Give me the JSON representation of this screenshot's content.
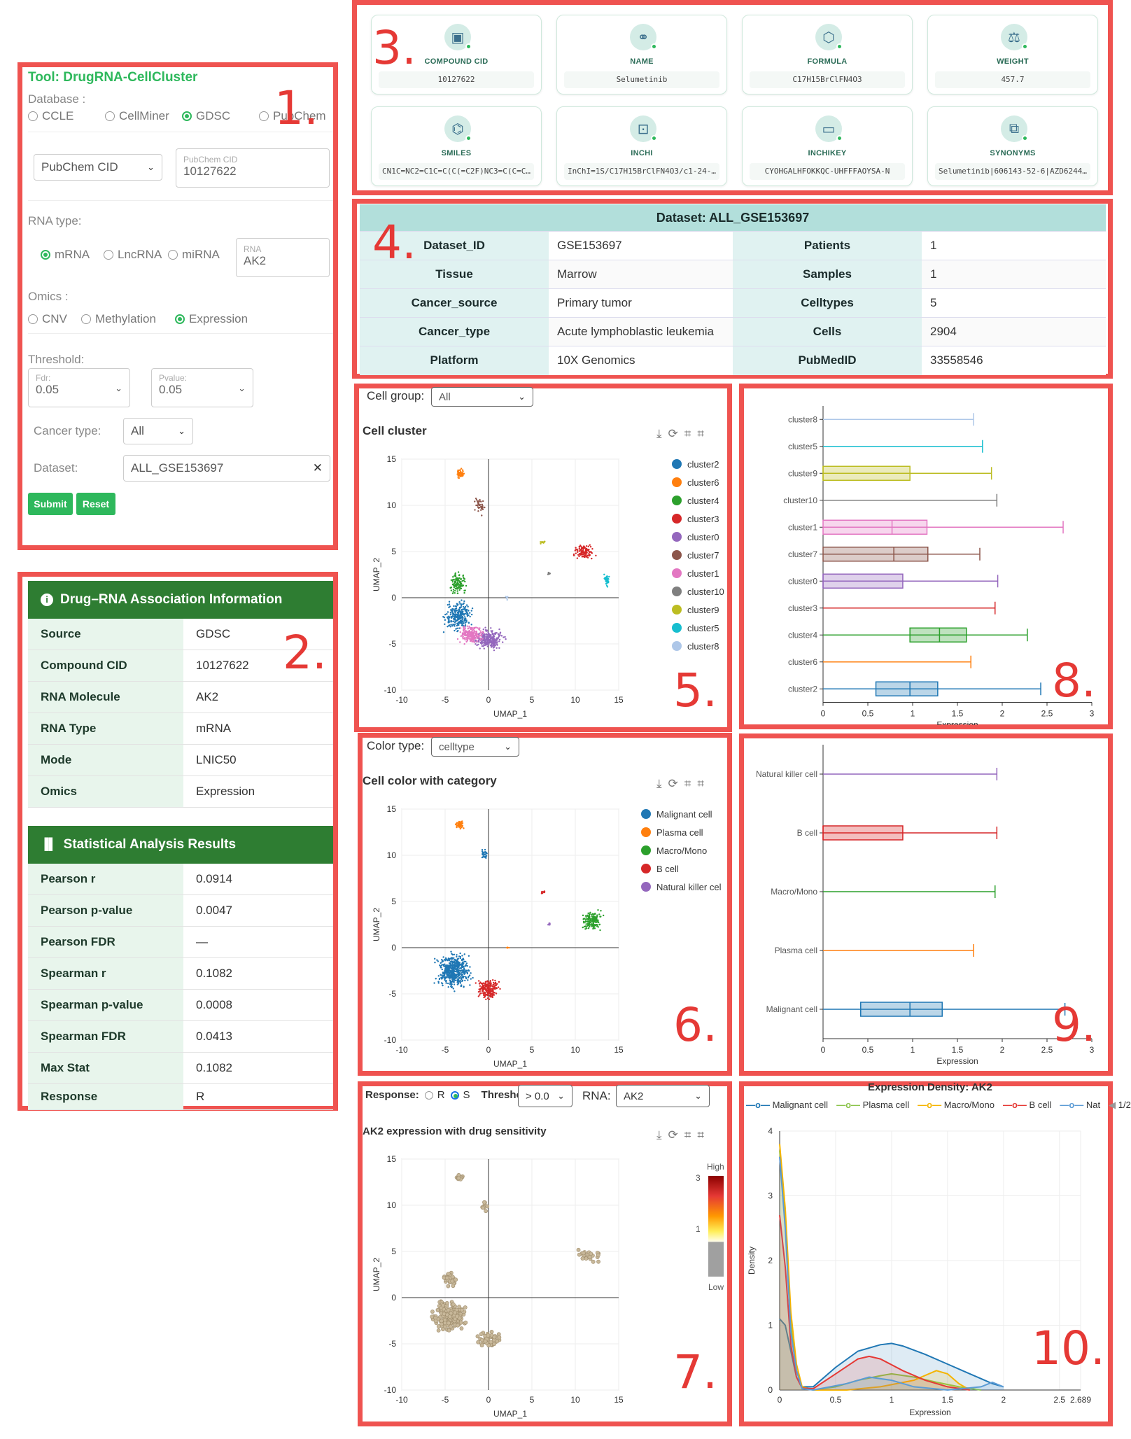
{
  "tool_panel": {
    "title": "Tool: DrugRNA-CellCluster",
    "database_label": "Database :",
    "databases": [
      "CCLE",
      "CellMiner",
      "GDSC",
      "PubChem"
    ],
    "database_selected": "GDSC",
    "id_type": "PubChem CID",
    "id_float_label": "PubChem CID",
    "id_value": "10127622",
    "rna_type_label": "RNA type:",
    "rna_types": [
      "mRNA",
      "LncRNA",
      "miRNA"
    ],
    "rna_selected": "mRNA",
    "rna_float_label": "RNA",
    "rna_value": "AK2",
    "omics_label": "Omics :",
    "omics": [
      "CNV",
      "Methylation",
      "Expression"
    ],
    "omics_selected": "Expression",
    "threshold_label": "Threshold:",
    "fdr_label": "Fdr:",
    "fdr_value": "0.05",
    "pvalue_label": "Pvalue:",
    "pvalue_value": "0.05",
    "cancer_type_label": "Cancer type:",
    "cancer_type_value": "All",
    "dataset_label": "Dataset:",
    "dataset_value": "ALL_GSE153697",
    "submit": "Submit",
    "reset": "Reset"
  },
  "association": {
    "title": "Drug–RNA Association Information",
    "rows": [
      {
        "k": "Source",
        "v": "GDSC"
      },
      {
        "k": "Compound CID",
        "v": "10127622"
      },
      {
        "k": "RNA Molecule",
        "v": "AK2"
      },
      {
        "k": "RNA Type",
        "v": "mRNA"
      },
      {
        "k": "Mode",
        "v": "LNIC50"
      },
      {
        "k": "Omics",
        "v": "Expression"
      }
    ]
  },
  "stats": {
    "title": "Statistical Analysis Results",
    "rows": [
      {
        "k": "Pearson r",
        "v": "0.0914"
      },
      {
        "k": "Pearson p-value",
        "v": "0.0047"
      },
      {
        "k": "Pearson FDR",
        "v": "—"
      },
      {
        "k": "Spearman r",
        "v": "0.1082"
      },
      {
        "k": "Spearman p-value",
        "v": "0.0008"
      },
      {
        "k": "Spearman FDR",
        "v": "0.0413"
      },
      {
        "k": "Max Stat",
        "v": "0.1082"
      },
      {
        "k": "Response",
        "v": "R"
      }
    ]
  },
  "compound_cards": [
    {
      "title": "COMPOUND CID",
      "value": "10127622",
      "icon": "pill-icon"
    },
    {
      "title": "NAME",
      "value": "Selumetinib",
      "icon": "capsule-icon"
    },
    {
      "title": "FORMULA",
      "value": "C17H15BrClFN4O3",
      "icon": "hexagon-icon"
    },
    {
      "title": "WEIGHT",
      "value": "457.7",
      "icon": "scale-icon"
    },
    {
      "title": "SMILES",
      "value": "CN1C=NC2=C1C=C(C(=C2F)NC3=C(C=C…",
      "icon": "molecule-icon"
    },
    {
      "title": "INCHI",
      "value": "InChI=1S/C17H15BrClFN4O3/c1-24-…",
      "icon": "scan-icon"
    },
    {
      "title": "INCHIKEY",
      "value": "CYOHGALHFOKKQC-UHFFFAOYSA-N",
      "icon": "terminal-icon"
    },
    {
      "title": "SYNONYMS",
      "value": "Selumetinib|606143-52-6|AZD6244…",
      "icon": "copy-icon"
    }
  ],
  "dataset": {
    "header": "Dataset: ALL_GSE153697",
    "rows": [
      [
        "Dataset_ID",
        "GSE153697",
        "Patients",
        "1"
      ],
      [
        "Tissue",
        "Marrow",
        "Samples",
        "1"
      ],
      [
        "Cancer_source",
        "Primary tumor",
        "Celltypes",
        "5"
      ],
      [
        "Cancer_type",
        "Acute lymphoblastic leukemia",
        "Cells",
        "2904"
      ],
      [
        "Platform",
        "10X Genomics",
        "PubMedID",
        "33558546"
      ]
    ]
  },
  "panel_numbers": [
    "1.",
    "2.",
    "3.",
    "4.",
    "5.",
    "6.",
    "7.",
    "8.",
    "9.",
    "10."
  ],
  "cluster_panel": {
    "control_label": "Cell group:",
    "control_value": "All",
    "title": "Cell cluster",
    "legend": [
      {
        "name": "cluster2",
        "color": "#1f77b4"
      },
      {
        "name": "cluster6",
        "color": "#ff7f0e"
      },
      {
        "name": "cluster4",
        "color": "#2ca02c"
      },
      {
        "name": "cluster3",
        "color": "#d62728"
      },
      {
        "name": "cluster0",
        "color": "#9467bd"
      },
      {
        "name": "cluster7",
        "color": "#8c564b"
      },
      {
        "name": "cluster1",
        "color": "#e377c2"
      },
      {
        "name": "cluster10",
        "color": "#7f7f7f"
      },
      {
        "name": "cluster9",
        "color": "#bcbd22"
      },
      {
        "name": "cluster5",
        "color": "#17becf"
      },
      {
        "name": "cluster8",
        "color": "#aec7e8"
      }
    ]
  },
  "category_panel": {
    "control_label": "Color type:",
    "control_value": "celltype",
    "title": "Cell color with category",
    "legend": [
      {
        "name": "Malignant cell",
        "color": "#1f77b4"
      },
      {
        "name": "Plasma cell",
        "color": "#ff7f0e"
      },
      {
        "name": "Macro/Mono",
        "color": "#2ca02c"
      },
      {
        "name": "B cell",
        "color": "#d62728"
      },
      {
        "name": "Natural killer cel",
        "color": "#9467bd"
      }
    ]
  },
  "sensitivity_panel": {
    "response_label": "Response:",
    "response_options": [
      "R",
      "S"
    ],
    "response_selected": "S",
    "threshold_label": "Threshold:",
    "threshold_value": "> 0.0",
    "rna_label": "RNA:",
    "rna_value": "AK2",
    "title": "AK2 expression with drug sensitivity",
    "scale_high": "High",
    "scale_low": "Low",
    "scale_ticks": [
      "3",
      "1"
    ]
  },
  "density_panel": {
    "title": "Expression Density: AK2",
    "legend": [
      {
        "name": "Malignant cell",
        "color": "#1f77b4"
      },
      {
        "name": "Plasma cell",
        "color": "#8bc34a"
      },
      {
        "name": "Macro/Mono",
        "color": "#f5b400"
      },
      {
        "name": "B cell",
        "color": "#e53935"
      },
      {
        "name": "Nat",
        "color": "#5b9bd5"
      }
    ],
    "page": "1/2"
  },
  "toolbar_icons": [
    "download-icon",
    "refresh-icon",
    "crop-icon",
    "crop-icon"
  ],
  "chart_data": [
    {
      "type": "scatter",
      "name": "cell cluster umap",
      "title": "Cell cluster",
      "xlabel": "UMAP_1",
      "ylabel": "UMAP_2",
      "xlim": [
        -10,
        15
      ],
      "ylim": [
        -10,
        15
      ],
      "xticks": [
        "-10",
        "-5",
        "0",
        "5",
        "10",
        "15"
      ],
      "yticks": [
        "-10",
        "-5",
        "0",
        "5",
        "10",
        "15"
      ]
    },
    {
      "type": "scatter",
      "name": "category umap",
      "title": "Cell color with category",
      "xlabel": "UMAP_1",
      "ylabel": "UMAP_2",
      "xlim": [
        -10,
        15
      ],
      "ylim": [
        -10,
        15
      ],
      "xticks": [
        "-10",
        "-5",
        "0",
        "5",
        "10",
        "15"
      ],
      "yticks": [
        "-10",
        "-5",
        "0",
        "5",
        "10",
        "15"
      ]
    },
    {
      "type": "scatter",
      "name": "sensitivity umap",
      "title": "AK2 expression with drug sensitivity",
      "xlabel": "UMAP_1",
      "ylabel": "UMAP_2",
      "xlim": [
        -10,
        15
      ],
      "ylim": [
        -10,
        15
      ],
      "xticks": [
        "-10",
        "-5",
        "0",
        "5",
        "10",
        "15"
      ],
      "yticks": [
        "-10",
        "-5",
        "0",
        "5",
        "10",
        "15"
      ]
    },
    {
      "type": "box",
      "name": "cluster box",
      "xlabel": "Expression",
      "xlim": [
        0,
        3
      ],
      "xticks": [
        "0",
        "0.5",
        "1",
        "1.5",
        "2",
        "2.5",
        "3"
      ],
      "categories": [
        "cluster8",
        "cluster5",
        "cluster9",
        "cluster10",
        "cluster1",
        "cluster7",
        "cluster0",
        "cluster3",
        "cluster4",
        "cluster6",
        "cluster2"
      ],
      "colors": [
        "#aec7e8",
        "#17becf",
        "#bcbd22",
        "#7f7f7f",
        "#e377c2",
        "#8c564b",
        "#9467bd",
        "#d62728",
        "#2ca02c",
        "#ff7f0e",
        "#1f77b4"
      ],
      "boxes": [
        [
          0,
          0,
          0,
          0,
          1.68
        ],
        [
          0,
          0,
          0,
          0,
          1.78
        ],
        [
          0,
          0,
          0,
          0.97,
          1.88
        ],
        [
          0,
          0,
          0,
          0,
          1.94
        ],
        [
          0,
          0,
          0.77,
          1.16,
          2.68
        ],
        [
          0,
          0,
          0.79,
          1.17,
          1.75
        ],
        [
          0,
          0,
          0,
          0.89,
          1.95
        ],
        [
          0,
          0,
          0,
          0,
          1.92
        ],
        [
          0,
          0.97,
          1.3,
          1.6,
          2.28
        ],
        [
          0,
          0,
          0,
          0,
          1.65
        ],
        [
          0,
          0.59,
          0.97,
          1.28,
          2.43
        ]
      ]
    },
    {
      "type": "box",
      "name": "celltype box",
      "xlabel": "Expression",
      "xlim": [
        0,
        3
      ],
      "xticks": [
        "0",
        "0.5",
        "1",
        "1.5",
        "2",
        "2.5",
        "3"
      ],
      "categories": [
        "Natural killer cell",
        "B cell",
        "Macro/Mono",
        "Plasma cell",
        "Malignant cell"
      ],
      "colors": [
        "#9467bd",
        "#d62728",
        "#2ca02c",
        "#ff7f0e",
        "#1f77b4"
      ],
      "boxes": [
        [
          0,
          0,
          0,
          0,
          1.94
        ],
        [
          0,
          0,
          0,
          0.89,
          1.94
        ],
        [
          0,
          0,
          0,
          0,
          1.92
        ],
        [
          0,
          0,
          0,
          0,
          1.68
        ],
        [
          0,
          0.42,
          0.97,
          1.33,
          2.7
        ]
      ]
    },
    {
      "type": "area",
      "name": "density",
      "title": "Expression Density: AK2",
      "xlabel": "Expression",
      "ylabel": "Density",
      "xlim": [
        0,
        2.689
      ],
      "ylim": [
        0,
        4
      ],
      "xticks": [
        "0",
        "0.5",
        "1",
        "1.5",
        "2",
        "2.5",
        "2.689"
      ],
      "yticks": [
        "0",
        "1",
        "2",
        "3",
        "4"
      ],
      "series": [
        {
          "name": "Malignant cell",
          "color": "#1f77b4",
          "x": [
            0,
            0.05,
            0.1,
            0.15,
            0.2,
            0.3,
            0.5,
            0.7,
            0.9,
            1.0,
            1.1,
            1.3,
            1.5,
            1.7,
            1.9,
            2.0
          ],
          "y": [
            1.1,
            1.0,
            0.6,
            0.2,
            0.05,
            0.05,
            0.35,
            0.6,
            0.7,
            0.72,
            0.68,
            0.55,
            0.4,
            0.25,
            0.1,
            0.05
          ]
        },
        {
          "name": "Plasma cell",
          "color": "#8bc34a",
          "x": [
            0,
            0.05,
            0.1,
            0.15,
            0.2,
            0.3,
            0.5,
            0.7,
            0.9,
            1.0,
            1.2,
            1.4,
            1.6,
            1.8
          ],
          "y": [
            3.7,
            2.6,
            1.0,
            0.3,
            0.05,
            0,
            0.05,
            0.15,
            0.22,
            0.25,
            0.2,
            0.12,
            0.05,
            0
          ]
        },
        {
          "name": "Macro/Mono",
          "color": "#f5b400",
          "x": [
            0,
            0.05,
            0.1,
            0.15,
            0.2,
            0.3,
            0.6,
            0.9,
            1.2,
            1.4,
            1.5,
            1.6,
            1.7
          ],
          "y": [
            3.8,
            2.8,
            1.2,
            0.4,
            0.05,
            0,
            0,
            0.05,
            0.15,
            0.3,
            0.25,
            0.1,
            0
          ]
        },
        {
          "name": "B cell",
          "color": "#e53935",
          "x": [
            0,
            0.05,
            0.1,
            0.15,
            0.2,
            0.3,
            0.5,
            0.7,
            0.8,
            0.9,
            1.1,
            1.3,
            1.5,
            1.7
          ],
          "y": [
            2.7,
            1.9,
            0.7,
            0.2,
            0.03,
            0.02,
            0.25,
            0.48,
            0.52,
            0.48,
            0.3,
            0.15,
            0.05,
            0
          ]
        },
        {
          "name": "Nat",
          "color": "#5b9bd5",
          "x": [
            0,
            0.05,
            0.1,
            0.15,
            0.2,
            0.3,
            0.6,
            0.8,
            1.0,
            1.2,
            1.5,
            1.8,
            1.9,
            2.0
          ],
          "y": [
            3.6,
            2.5,
            0.9,
            0.3,
            0.02,
            0,
            0.1,
            0.2,
            0.15,
            0.05,
            0,
            0.05,
            0.12,
            0.05
          ]
        }
      ]
    }
  ]
}
